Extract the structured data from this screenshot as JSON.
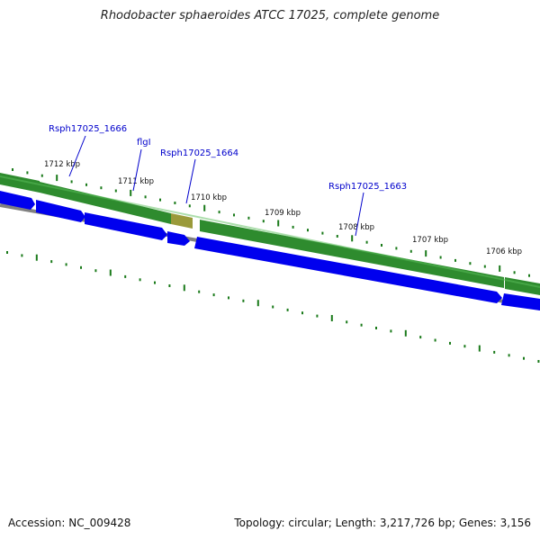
{
  "title": "Rhodobacter sphaeroides ATCC 17025, complete genome",
  "footer": {
    "accession": "Accession: NC_009428",
    "topology": "Topology: circular; Length: 3,217,726 bp; Genes: 3,156"
  },
  "ticks": [
    {
      "label": "1712 kbp"
    },
    {
      "label": "1711 kbp"
    },
    {
      "label": "1710 kbp"
    },
    {
      "label": "1709 kbp"
    },
    {
      "label": "1708 kbp"
    },
    {
      "label": "1707 kbp"
    },
    {
      "label": "1706 kbp"
    }
  ],
  "gene_labels": [
    {
      "label": "Rsph17025_1666"
    },
    {
      "label": "flgI"
    },
    {
      "label": "Rsph17025_1664"
    },
    {
      "label": "Rsph17025_1663"
    }
  ],
  "colors": {
    "gene_track": "#2e8b2e",
    "cds": "#0000ee",
    "backbone": "#808080",
    "label": "#0000cc",
    "tick": "#1a7a1a"
  }
}
